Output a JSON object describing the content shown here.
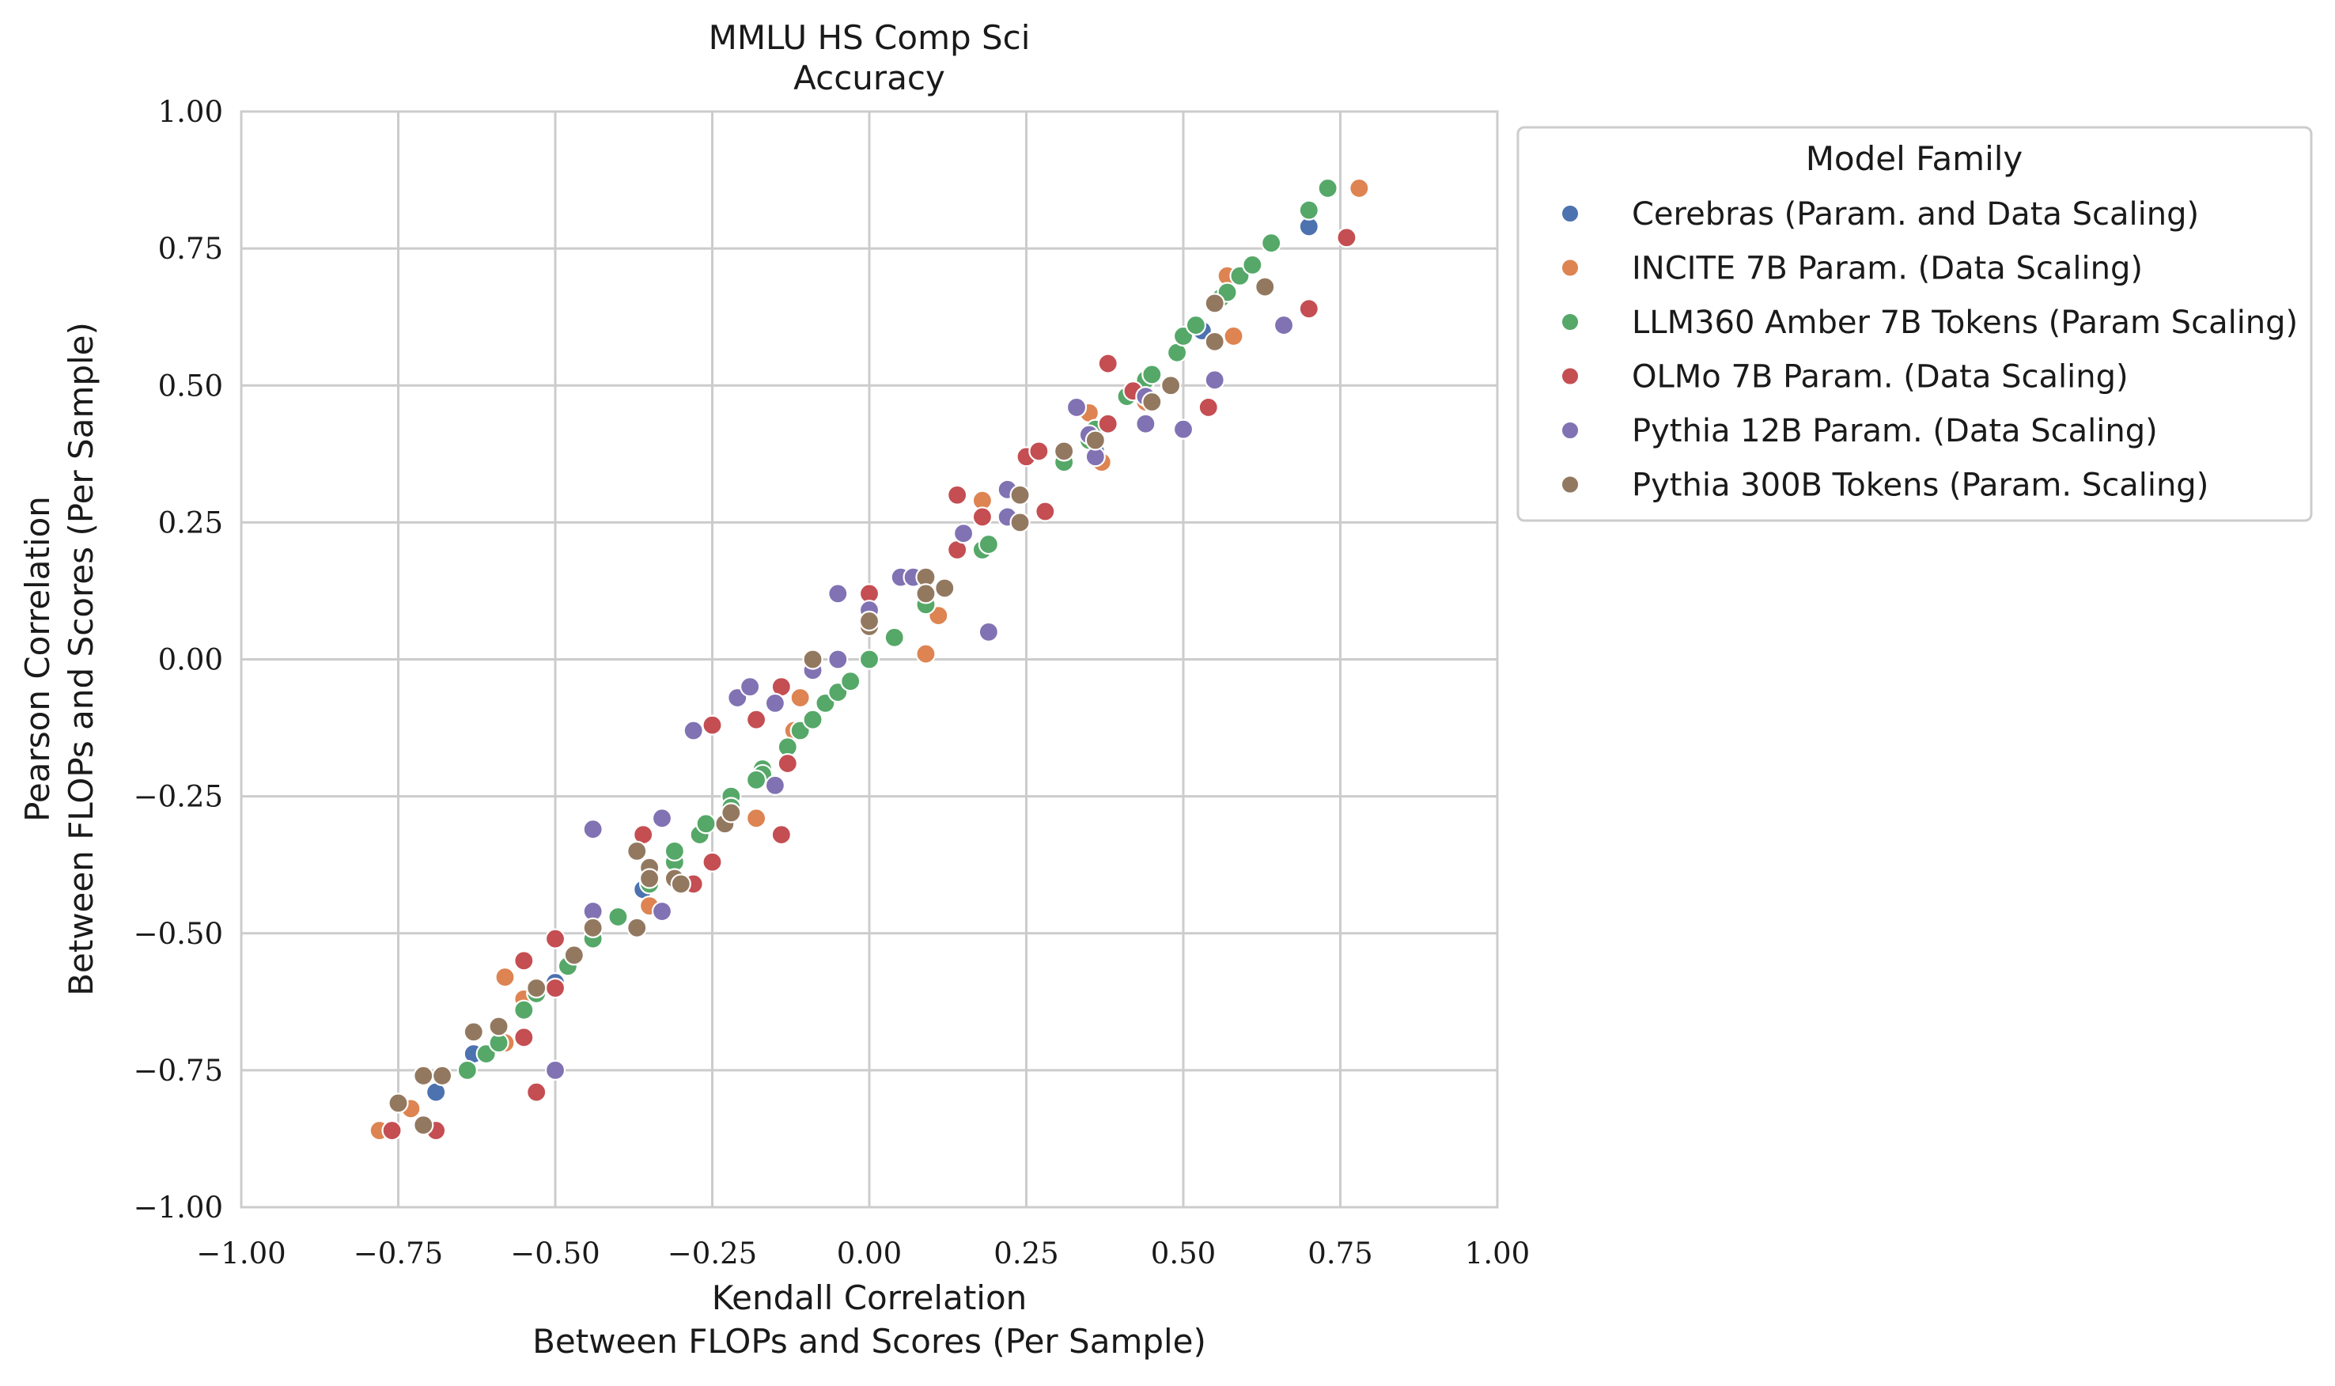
{
  "chart_data": {
    "type": "scatter",
    "title": [
      "MMLU HS Comp Sci",
      "Accuracy"
    ],
    "xlabel": [
      "Kendall Correlation",
      "Between FLOPs and Scores (Per Sample)"
    ],
    "ylabel": [
      "Pearson Correlation",
      "Between FLOPs and Scores (Per Sample)"
    ],
    "xlim": [
      -1.0,
      1.0
    ],
    "ylim": [
      -1.0,
      1.0
    ],
    "xticks": [
      "−1.00",
      "−0.75",
      "−0.50",
      "−0.25",
      "0.00",
      "0.25",
      "0.50",
      "0.75",
      "1.00"
    ],
    "yticks": [
      "1.00",
      "0.75",
      "0.50",
      "0.25",
      "0.00",
      "−0.25",
      "−0.50",
      "−0.75",
      "−1.00"
    ],
    "grid": true,
    "legend": {
      "title": "Model Family",
      "placement": "outside upper right"
    },
    "series": [
      {
        "name": "Cerebras (Param. and Data Scaling)",
        "color": "#4c72b0",
        "points": [
          [
            -0.69,
            -0.79
          ],
          [
            -0.63,
            -0.72
          ],
          [
            -0.5,
            -0.59
          ],
          [
            -0.36,
            -0.42
          ],
          [
            0.0,
            0.0
          ],
          [
            0.36,
            0.38
          ],
          [
            0.53,
            0.6
          ],
          [
            0.7,
            0.79
          ]
        ]
      },
      {
        "name": "INCITE 7B Param. (Data Scaling)",
        "color": "#dd8452",
        "points": [
          [
            -0.78,
            -0.86
          ],
          [
            -0.73,
            -0.82
          ],
          [
            -0.58,
            -0.7
          ],
          [
            -0.58,
            -0.58
          ],
          [
            -0.55,
            -0.62
          ],
          [
            -0.35,
            -0.45
          ],
          [
            -0.18,
            -0.29
          ],
          [
            -0.11,
            -0.07
          ],
          [
            -0.12,
            -0.13
          ],
          [
            0.09,
            0.01
          ],
          [
            0.11,
            0.08
          ],
          [
            0.18,
            0.29
          ],
          [
            0.35,
            0.45
          ],
          [
            0.37,
            0.36
          ],
          [
            0.44,
            0.47
          ],
          [
            0.57,
            0.7
          ],
          [
            0.58,
            0.59
          ],
          [
            0.78,
            0.86
          ]
        ]
      },
      {
        "name": "LLM360 Amber 7B Tokens (Param Scaling)",
        "color": "#55a868",
        "points": [
          [
            -0.64,
            -0.75
          ],
          [
            -0.61,
            -0.72
          ],
          [
            -0.59,
            -0.7
          ],
          [
            -0.55,
            -0.64
          ],
          [
            -0.53,
            -0.61
          ],
          [
            -0.48,
            -0.56
          ],
          [
            -0.44,
            -0.51
          ],
          [
            -0.4,
            -0.47
          ],
          [
            -0.35,
            -0.41
          ],
          [
            -0.31,
            -0.37
          ],
          [
            -0.31,
            -0.35
          ],
          [
            -0.27,
            -0.32
          ],
          [
            -0.26,
            -0.3
          ],
          [
            -0.22,
            -0.25
          ],
          [
            -0.22,
            -0.27
          ],
          [
            -0.17,
            -0.2
          ],
          [
            -0.17,
            -0.21
          ],
          [
            -0.18,
            -0.22
          ],
          [
            -0.13,
            -0.16
          ],
          [
            -0.11,
            -0.13
          ],
          [
            -0.09,
            -0.11
          ],
          [
            -0.07,
            -0.08
          ],
          [
            -0.05,
            -0.06
          ],
          [
            -0.03,
            -0.04
          ],
          [
            0.0,
            0.0
          ],
          [
            0.04,
            0.04
          ],
          [
            0.09,
            0.1
          ],
          [
            0.18,
            0.2
          ],
          [
            0.19,
            0.21
          ],
          [
            0.31,
            0.36
          ],
          [
            0.35,
            0.4
          ],
          [
            0.36,
            0.42
          ],
          [
            0.41,
            0.48
          ],
          [
            0.44,
            0.51
          ],
          [
            0.45,
            0.52
          ],
          [
            0.49,
            0.56
          ],
          [
            0.5,
            0.59
          ],
          [
            0.52,
            0.61
          ],
          [
            0.56,
            0.66
          ],
          [
            0.57,
            0.67
          ],
          [
            0.59,
            0.7
          ],
          [
            0.61,
            0.72
          ],
          [
            0.64,
            0.76
          ],
          [
            0.7,
            0.82
          ],
          [
            0.73,
            0.86
          ]
        ]
      },
      {
        "name": "OLMo 7B Param. (Data Scaling)",
        "color": "#c44e52",
        "points": [
          [
            -0.76,
            -0.86
          ],
          [
            -0.69,
            -0.86
          ],
          [
            -0.55,
            -0.69
          ],
          [
            -0.55,
            -0.55
          ],
          [
            -0.53,
            -0.79
          ],
          [
            -0.5,
            -0.51
          ],
          [
            -0.5,
            -0.6
          ],
          [
            -0.36,
            -0.32
          ],
          [
            -0.28,
            -0.41
          ],
          [
            -0.25,
            -0.37
          ],
          [
            -0.25,
            -0.12
          ],
          [
            -0.18,
            -0.11
          ],
          [
            -0.14,
            -0.05
          ],
          [
            -0.14,
            -0.32
          ],
          [
            -0.13,
            -0.19
          ],
          [
            0.0,
            0.12
          ],
          [
            0.14,
            0.3
          ],
          [
            0.14,
            0.2
          ],
          [
            0.18,
            0.26
          ],
          [
            0.25,
            0.37
          ],
          [
            0.27,
            0.38
          ],
          [
            0.28,
            0.27
          ],
          [
            0.38,
            0.54
          ],
          [
            0.38,
            0.43
          ],
          [
            0.42,
            0.49
          ],
          [
            0.54,
            0.46
          ],
          [
            0.7,
            0.64
          ],
          [
            0.76,
            0.77
          ]
        ]
      },
      {
        "name": "Pythia 12B Param. (Data Scaling)",
        "color": "#8172b3",
        "points": [
          [
            -0.5,
            -0.75
          ],
          [
            -0.44,
            -0.31
          ],
          [
            -0.44,
            -0.46
          ],
          [
            -0.33,
            -0.29
          ],
          [
            -0.33,
            -0.46
          ],
          [
            -0.28,
            -0.13
          ],
          [
            -0.21,
            -0.07
          ],
          [
            -0.19,
            -0.05
          ],
          [
            -0.15,
            -0.08
          ],
          [
            -0.15,
            -0.23
          ],
          [
            -0.09,
            -0.02
          ],
          [
            -0.05,
            0.0
          ],
          [
            -0.05,
            0.12
          ],
          [
            0.0,
            0.09
          ],
          [
            0.05,
            0.15
          ],
          [
            0.07,
            0.15
          ],
          [
            0.15,
            0.23
          ],
          [
            0.19,
            0.05
          ],
          [
            0.22,
            0.31
          ],
          [
            0.22,
            0.26
          ],
          [
            0.33,
            0.46
          ],
          [
            0.35,
            0.41
          ],
          [
            0.36,
            0.37
          ],
          [
            0.44,
            0.43
          ],
          [
            0.44,
            0.48
          ],
          [
            0.5,
            0.42
          ],
          [
            0.55,
            0.51
          ],
          [
            0.66,
            0.61
          ]
        ]
      },
      {
        "name": "Pythia 300B Tokens (Param. Scaling)",
        "color": "#937860",
        "points": [
          [
            -0.75,
            -0.81
          ],
          [
            -0.71,
            -0.85
          ],
          [
            -0.71,
            -0.76
          ],
          [
            -0.68,
            -0.76
          ],
          [
            -0.63,
            -0.68
          ],
          [
            -0.59,
            -0.67
          ],
          [
            -0.53,
            -0.6
          ],
          [
            -0.47,
            -0.54
          ],
          [
            -0.44,
            -0.49
          ],
          [
            -0.37,
            -0.49
          ],
          [
            -0.37,
            -0.35
          ],
          [
            -0.35,
            -0.38
          ],
          [
            -0.35,
            -0.4
          ],
          [
            -0.31,
            -0.4
          ],
          [
            -0.3,
            -0.41
          ],
          [
            -0.23,
            -0.3
          ],
          [
            -0.22,
            -0.28
          ],
          [
            -0.09,
            0.0
          ],
          [
            0.0,
            0.06
          ],
          [
            0.0,
            0.07
          ],
          [
            0.09,
            0.15
          ],
          [
            0.09,
            0.12
          ],
          [
            0.12,
            0.13
          ],
          [
            0.24,
            0.3
          ],
          [
            0.24,
            0.25
          ],
          [
            0.31,
            0.38
          ],
          [
            0.36,
            0.4
          ],
          [
            0.45,
            0.47
          ],
          [
            0.48,
            0.5
          ],
          [
            0.55,
            0.58
          ],
          [
            0.55,
            0.65
          ],
          [
            0.63,
            0.68
          ]
        ]
      }
    ]
  }
}
